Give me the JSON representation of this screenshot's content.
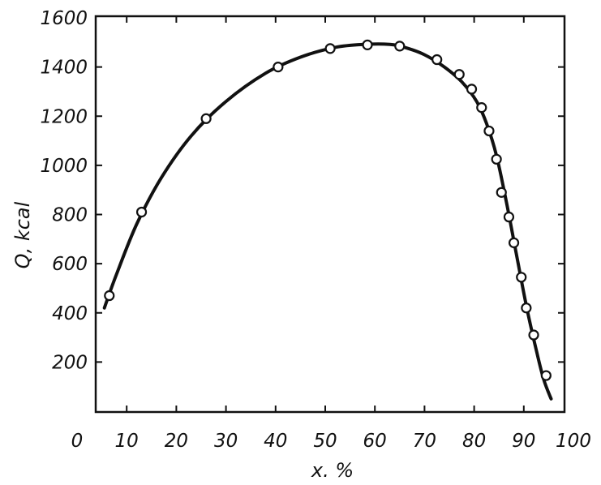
{
  "chart_data": {
    "type": "line",
    "title": "",
    "xlabel": "x. %",
    "ylabel": "Q, kcal",
    "xlim": [
      0,
      100
    ],
    "ylim": [
      0,
      1600
    ],
    "x_ticks": [
      "0",
      "10",
      "20",
      "30",
      "40",
      "50",
      "60",
      "70",
      "80",
      "90",
      "100"
    ],
    "y_ticks": [
      "200",
      "400",
      "600",
      "800",
      "1000",
      "1200",
      "1400",
      "1600"
    ],
    "grid": false,
    "legend": "none",
    "line_color": "#111111",
    "points": {
      "x": [
        6.5,
        13,
        26,
        40.5,
        51,
        58.5,
        65,
        72.5,
        77,
        79.5,
        81.5,
        83,
        84.5,
        85.5,
        87,
        88,
        89.5,
        90.5,
        92,
        94.5
      ],
      "y": [
        470,
        810,
        1190,
        1400,
        1475,
        1490,
        1485,
        1430,
        1370,
        1310,
        1235,
        1140,
        1025,
        890,
        790,
        685,
        545,
        420,
        310,
        145
      ]
    },
    "curve": {
      "x": [
        5.5,
        8,
        12,
        17,
        23,
        30,
        38,
        45,
        52,
        58,
        63,
        66,
        70,
        74,
        77.5,
        80.5,
        82.5,
        84.5,
        86.5,
        88.5,
        90.5,
        92.5,
        94,
        95.5
      ],
      "y": [
        420,
        560,
        760,
        950,
        1120,
        1260,
        1375,
        1440,
        1480,
        1492,
        1492,
        1480,
        1450,
        1400,
        1340,
        1260,
        1170,
        1040,
        850,
        640,
        430,
        250,
        130,
        50
      ]
    }
  }
}
